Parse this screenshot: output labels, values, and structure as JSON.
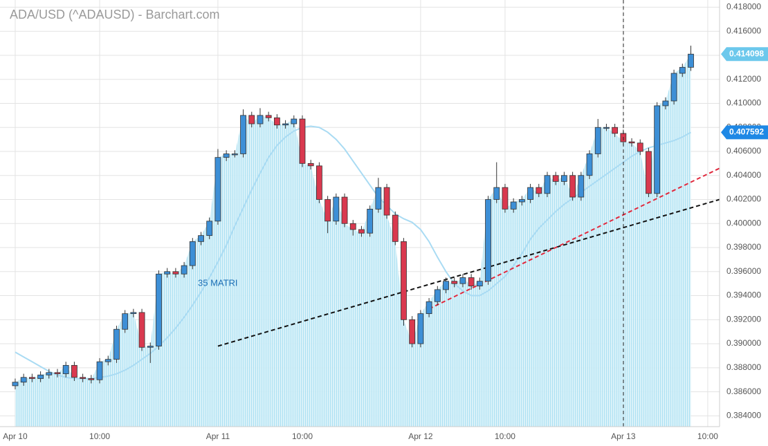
{
  "chart_data": {
    "type": "candlestick",
    "title": "ADA/USD (^ADAUSD) - Barchart.com",
    "x": [
      0,
      1,
      2,
      3,
      4,
      5,
      6,
      7,
      8,
      9,
      10,
      11,
      12,
      13,
      14,
      15,
      16,
      17,
      18,
      19,
      20,
      21,
      22,
      23,
      24,
      25,
      26,
      27,
      28,
      29,
      30,
      31,
      32,
      33,
      34,
      35,
      36,
      37,
      38,
      39,
      40,
      41,
      42,
      43,
      44,
      45,
      46,
      47,
      48,
      49,
      50,
      51,
      52,
      53,
      54,
      55,
      56,
      57,
      58,
      59,
      60,
      61,
      62,
      63,
      64,
      65,
      66,
      67,
      68,
      69,
      70,
      71,
      72,
      73,
      74,
      75,
      76,
      77,
      78,
      79,
      80
    ],
    "open": [
      0.3865,
      0.3868,
      0.3872,
      0.3871,
      0.3874,
      0.3876,
      0.3875,
      0.3882,
      0.3872,
      0.3871,
      0.387,
      0.3885,
      0.3887,
      0.3912,
      0.3925,
      0.3926,
      0.3897,
      0.3898,
      0.3958,
      0.396,
      0.3958,
      0.3965,
      0.3985,
      0.399,
      0.4002,
      0.4055,
      0.4058,
      0.4058,
      0.409,
      0.4083,
      0.409,
      0.4088,
      0.4082,
      0.4083,
      0.4087,
      0.405,
      0.4048,
      0.402,
      0.4002,
      0.4022,
      0.4,
      0.3995,
      0.3992,
      0.4012,
      0.403,
      0.4007,
      0.3985,
      0.392,
      0.39,
      0.3925,
      0.3935,
      0.3945,
      0.3952,
      0.395,
      0.3955,
      0.3948,
      0.3952,
      0.402,
      0.403,
      0.4012,
      0.4018,
      0.402,
      0.403,
      0.4025,
      0.404,
      0.4035,
      0.404,
      0.4022,
      0.404,
      0.4058,
      0.408,
      0.408,
      0.4075,
      0.4068,
      0.4067,
      0.406,
      0.4025,
      0.4098,
      0.4102,
      0.4125,
      0.413
    ],
    "high": [
      0.3871,
      0.3875,
      0.3875,
      0.3877,
      0.3879,
      0.3879,
      0.3885,
      0.3885,
      0.3875,
      0.3874,
      0.3888,
      0.389,
      0.3915,
      0.3928,
      0.3929,
      0.3929,
      0.3901,
      0.3961,
      0.3963,
      0.3963,
      0.3968,
      0.3988,
      0.3993,
      0.4005,
      0.4062,
      0.4061,
      0.4061,
      0.4095,
      0.4093,
      0.4096,
      0.4093,
      0.4091,
      0.4086,
      0.409,
      0.409,
      0.4053,
      0.4051,
      0.4023,
      0.4025,
      0.4025,
      0.4003,
      0.3998,
      0.4015,
      0.4038,
      0.4033,
      0.401,
      0.3988,
      0.3923,
      0.3928,
      0.3938,
      0.3948,
      0.3955,
      0.3955,
      0.3958,
      0.3958,
      0.3955,
      0.4023,
      0.4051,
      0.4033,
      0.4021,
      0.4023,
      0.4033,
      0.4033,
      0.4043,
      0.4043,
      0.4043,
      0.4043,
      0.4043,
      0.4061,
      0.4087,
      0.4083,
      0.4083,
      0.4078,
      0.4071,
      0.407,
      0.4063,
      0.4101,
      0.4105,
      0.4128,
      0.4133,
      0.4148
    ],
    "low": [
      0.3862,
      0.3865,
      0.3868,
      0.3868,
      0.3871,
      0.3872,
      0.3872,
      0.3869,
      0.3868,
      0.3867,
      0.3867,
      0.3882,
      0.3884,
      0.3909,
      0.3922,
      0.3894,
      0.3884,
      0.3895,
      0.3955,
      0.3955,
      0.3955,
      0.3962,
      0.3982,
      0.3987,
      0.3999,
      0.4052,
      0.4055,
      0.4055,
      0.408,
      0.408,
      0.4085,
      0.4079,
      0.4079,
      0.408,
      0.4047,
      0.4045,
      0.4017,
      0.3992,
      0.3999,
      0.3997,
      0.399,
      0.3989,
      0.3989,
      0.4009,
      0.4004,
      0.3982,
      0.3915,
      0.3897,
      0.3897,
      0.3922,
      0.3932,
      0.3942,
      0.3947,
      0.3947,
      0.3945,
      0.3945,
      0.3949,
      0.4017,
      0.4009,
      0.4009,
      0.4015,
      0.4017,
      0.4022,
      0.4022,
      0.4032,
      0.4032,
      0.4019,
      0.4019,
      0.4037,
      0.4055,
      0.4077,
      0.4072,
      0.4065,
      0.4064,
      0.4057,
      0.4022,
      0.4022,
      0.4095,
      0.4099,
      0.4122,
      0.4127
    ],
    "close": [
      0.3868,
      0.3872,
      0.3871,
      0.3874,
      0.3876,
      0.3875,
      0.3882,
      0.3872,
      0.3871,
      0.387,
      0.3885,
      0.3887,
      0.3912,
      0.3925,
      0.3926,
      0.3897,
      0.3898,
      0.3958,
      0.396,
      0.3958,
      0.3965,
      0.3985,
      0.399,
      0.4002,
      0.4055,
      0.4058,
      0.4058,
      0.409,
      0.4083,
      0.409,
      0.4088,
      0.4082,
      0.4083,
      0.4087,
      0.405,
      0.4048,
      0.402,
      0.4002,
      0.4022,
      0.4,
      0.3995,
      0.3992,
      0.4012,
      0.403,
      0.4007,
      0.3985,
      0.392,
      0.39,
      0.3925,
      0.3935,
      0.3945,
      0.3952,
      0.395,
      0.3955,
      0.3948,
      0.3952,
      0.402,
      0.403,
      0.4012,
      0.4018,
      0.402,
      0.403,
      0.4025,
      0.404,
      0.4035,
      0.404,
      0.4022,
      0.404,
      0.4058,
      0.408,
      0.408,
      0.4075,
      0.4068,
      0.4067,
      0.406,
      0.4025,
      0.4098,
      0.4102,
      0.4125,
      0.413,
      0.414098
    ],
    "up_color": "#3d8fd6",
    "down_color": "#d9394f",
    "area_color": "#c9ecf7",
    "ma": {
      "name": "35 MATRI",
      "color": "#a9dbf3",
      "label_color": "#1e88e5",
      "values": [
        0.3893,
        0.3889,
        0.3885,
        0.3881,
        0.3877,
        0.3874,
        0.3872,
        0.3871,
        0.3871,
        0.3871,
        0.3872,
        0.3873,
        0.3875,
        0.3878,
        0.3882,
        0.3887,
        0.3892,
        0.3898,
        0.3905,
        0.3913,
        0.3922,
        0.3932,
        0.3943,
        0.3955,
        0.3968,
        0.3982,
        0.3998,
        0.4013,
        0.4028,
        0.4042,
        0.4055,
        0.4065,
        0.4072,
        0.4077,
        0.408,
        0.4081,
        0.408,
        0.4076,
        0.407,
        0.4062,
        0.4052,
        0.4042,
        0.4032,
        0.4022,
        0.4015,
        0.4008,
        0.4004,
        0.4001,
        0.3995,
        0.3985,
        0.3972,
        0.396,
        0.395,
        0.3944,
        0.394,
        0.394,
        0.3944,
        0.395,
        0.3956,
        0.3965,
        0.3975,
        0.3987,
        0.3996,
        0.4003,
        0.401,
        0.4016,
        0.4021,
        0.4026,
        0.4031,
        0.4036,
        0.4041,
        0.4046,
        0.4051,
        0.4056,
        0.406,
        0.4063,
        0.4065,
        0.4067,
        0.4069,
        0.4072,
        0.407592
      ]
    },
    "last_color": "#6cc8ec",
    "trendlines": [
      {
        "color": "#111111",
        "x": [
          24,
          83.4
        ],
        "y": [
          0.3898,
          0.402
        ]
      },
      {
        "color": "#e0283c",
        "x": [
          49,
          83.4
        ],
        "y": [
          0.3929,
          0.4046
        ]
      }
    ],
    "xlim": [
      -1.8,
      83.4
    ],
    "xticks": [
      {
        "value": 0,
        "label": "Apr 10"
      },
      {
        "value": 10,
        "label": "10:00"
      },
      {
        "value": 24,
        "label": "Apr 11"
      },
      {
        "value": 34,
        "label": "10:00"
      },
      {
        "value": 48,
        "label": "Apr 12"
      },
      {
        "value": 58,
        "label": "10:00"
      },
      {
        "value": 72,
        "label": "Apr 13"
      },
      {
        "value": 82,
        "label": "10:00"
      }
    ],
    "ylim": [
      0.3831,
      0.4186
    ],
    "yticks": [
      {
        "value": 0.384,
        "label": "0.384000"
      },
      {
        "value": 0.386,
        "label": "0.386000"
      },
      {
        "value": 0.388,
        "label": "0.388000"
      },
      {
        "value": 0.39,
        "label": "0.390000"
      },
      {
        "value": 0.392,
        "label": "0.392000"
      },
      {
        "value": 0.394,
        "label": "0.394000"
      },
      {
        "value": 0.396,
        "label": "0.396000"
      },
      {
        "value": 0.398,
        "label": "0.398000"
      },
      {
        "value": 0.4,
        "label": "0.400000"
      },
      {
        "value": 0.402,
        "label": "0.402000"
      },
      {
        "value": 0.404,
        "label": "0.404000"
      },
      {
        "value": 0.406,
        "label": "0.406000"
      },
      {
        "value": 0.408,
        "label": "0.408000"
      },
      {
        "value": 0.41,
        "label": "0.410000"
      },
      {
        "value": 0.412,
        "label": "0.412000"
      },
      {
        "value": 0.414,
        "label": "0.414000"
      },
      {
        "value": 0.416,
        "label": "0.416000"
      },
      {
        "value": 0.418,
        "label": "0.418000"
      }
    ],
    "grid": true
  }
}
